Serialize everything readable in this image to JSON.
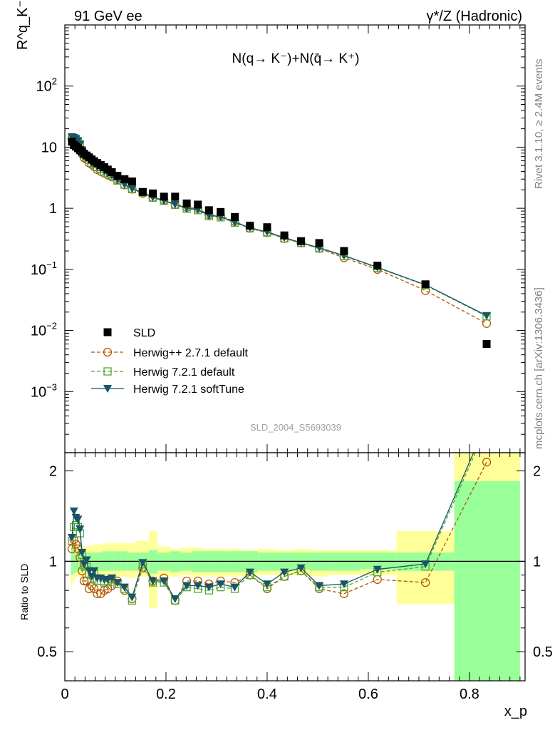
{
  "header": {
    "left": "91 GeV ee",
    "right": "γ*/Z (Hadronic)"
  },
  "side_text": {
    "rivet": "Rivet 3.1.10, ≥ 2.4M events",
    "mcplots": "mcplots.cern.ch [arXiv:1306.3436]"
  },
  "watermark": "SLD_2004_S5693039",
  "chart_data": [
    {
      "type": "scatter",
      "panel": "main",
      "title": "N(q→ K⁻)+N(q̄→ K⁺)",
      "ylabel": "R^q_K⁻",
      "xlabel": "x_p",
      "xlim": [
        0,
        0.91
      ],
      "ylim": [
        0.0001,
        1000
      ],
      "yscale": "log",
      "yticks": [
        {
          "value": 0.001,
          "base": "10",
          "exp": "−3"
        },
        {
          "value": 0.01,
          "base": "10",
          "exp": "−2"
        },
        {
          "value": 0.1,
          "base": "10",
          "exp": "−1"
        },
        {
          "value": 1,
          "label": "1"
        },
        {
          "value": 10,
          "label": "10"
        },
        {
          "value": 100,
          "base": "10",
          "exp": "2"
        }
      ],
      "legend_position": "lower-left",
      "x": [
        0.014,
        0.018,
        0.022,
        0.026,
        0.03,
        0.034,
        0.038,
        0.043,
        0.048,
        0.053,
        0.058,
        0.064,
        0.071,
        0.078,
        0.085,
        0.093,
        0.104,
        0.118,
        0.133,
        0.154,
        0.174,
        0.196,
        0.218,
        0.241,
        0.263,
        0.285,
        0.308,
        0.336,
        0.366,
        0.4,
        0.434,
        0.467,
        0.503,
        0.552,
        0.618,
        0.713,
        0.834
      ],
      "series": [
        {
          "name": "SLD",
          "style": "data",
          "color": "#000000",
          "values": [
            12.3,
            10.8,
            10.2,
            9.6,
            8.9,
            8.4,
            7.8,
            7.3,
            6.8,
            6.3,
            5.9,
            5.5,
            5.1,
            4.7,
            4.3,
            3.9,
            3.4,
            3.0,
            2.75,
            1.85,
            1.75,
            1.55,
            1.55,
            1.2,
            1.15,
            0.93,
            0.87,
            0.72,
            0.52,
            0.49,
            0.36,
            0.29,
            0.27,
            0.2,
            0.115,
            0.057,
            0.006
          ]
        },
        {
          "name": "Herwig++ 2.7.1 default",
          "style": "circle-dashed",
          "color": "#b35900",
          "values": [
            13.5,
            12.8,
            11.6,
            10.6,
            9.2,
            7.8,
            6.7,
            6.3,
            5.5,
            5.2,
            4.8,
            4.3,
            4.0,
            3.75,
            3.5,
            3.25,
            2.93,
            2.41,
            2.06,
            1.76,
            1.5,
            1.36,
            1.15,
            1.03,
            0.99,
            0.78,
            0.75,
            0.61,
            0.47,
            0.4,
            0.32,
            0.27,
            0.22,
            0.155,
            0.1,
            0.045,
            0.013
          ]
        },
        {
          "name": "Herwig 7.2.1 default",
          "style": "square-dashed",
          "color": "#4ea832",
          "values": [
            14.5,
            14.0,
            13.5,
            12.5,
            11.0,
            8.8,
            7.6,
            7.0,
            6.2,
            5.5,
            5.4,
            4.7,
            4.4,
            4.0,
            3.7,
            3.4,
            2.84,
            2.43,
            2.05,
            1.81,
            1.49,
            1.32,
            1.14,
            0.98,
            0.93,
            0.74,
            0.71,
            0.58,
            0.47,
            0.4,
            0.32,
            0.27,
            0.22,
            0.165,
            0.106,
            0.055,
            0.017
          ]
        },
        {
          "name": "Herwig 7.2.1 softTune",
          "style": "triangle-solid",
          "color": "#1a5468",
          "values": [
            14.8,
            14.3,
            13.8,
            12.7,
            11.2,
            9.0,
            7.7,
            7.1,
            6.3,
            5.6,
            5.5,
            4.8,
            4.5,
            4.1,
            3.75,
            3.45,
            2.9,
            2.46,
            2.08,
            1.83,
            1.51,
            1.34,
            1.16,
            1.0,
            0.95,
            0.76,
            0.73,
            0.59,
            0.48,
            0.41,
            0.33,
            0.275,
            0.225,
            0.168,
            0.108,
            0.056,
            0.0175
          ]
        }
      ]
    },
    {
      "type": "line",
      "panel": "ratio",
      "ylabel": "Ratio to SLD",
      "xlabel": "x_p",
      "xlim": [
        0,
        0.91
      ],
      "ylim": [
        0.4,
        2.3
      ],
      "yscale": "log",
      "yticks": [
        0.5,
        1,
        2
      ],
      "xticks": [
        0,
        0.2,
        0.4,
        0.6,
        0.8
      ],
      "x": [
        0.014,
        0.018,
        0.022,
        0.026,
        0.03,
        0.034,
        0.038,
        0.043,
        0.048,
        0.053,
        0.058,
        0.064,
        0.071,
        0.078,
        0.085,
        0.093,
        0.104,
        0.118,
        0.133,
        0.154,
        0.174,
        0.196,
        0.218,
        0.241,
        0.263,
        0.285,
        0.308,
        0.336,
        0.366,
        0.4,
        0.434,
        0.467,
        0.503,
        0.552,
        0.618,
        0.713,
        0.834
      ],
      "bands": {
        "edges": [
          0.012,
          0.016,
          0.02,
          0.024,
          0.028,
          0.032,
          0.036,
          0.04,
          0.045,
          0.05,
          0.055,
          0.06,
          0.067,
          0.074,
          0.081,
          0.088,
          0.097,
          0.111,
          0.125,
          0.141,
          0.166,
          0.183,
          0.208,
          0.229,
          0.252,
          0.274,
          0.296,
          0.32,
          0.351,
          0.382,
          0.417,
          0.451,
          0.484,
          0.521,
          0.584,
          0.656,
          0.77,
          0.9
        ],
        "stat_lo": [
          0.9,
          0.91,
          0.92,
          0.92,
          0.93,
          0.93,
          0.93,
          0.93,
          0.93,
          0.93,
          0.93,
          0.93,
          0.93,
          0.93,
          0.93,
          0.93,
          0.93,
          0.93,
          0.93,
          0.93,
          0.91,
          0.93,
          0.92,
          0.93,
          0.92,
          0.92,
          0.92,
          0.92,
          0.92,
          0.93,
          0.93,
          0.94,
          0.93,
          0.93,
          0.94,
          0.93,
          0.4
        ],
        "stat_hi": [
          1.1,
          1.09,
          1.08,
          1.08,
          1.07,
          1.07,
          1.07,
          1.07,
          1.07,
          1.07,
          1.07,
          1.07,
          1.07,
          1.08,
          1.08,
          1.08,
          1.08,
          1.08,
          1.07,
          1.07,
          1.09,
          1.07,
          1.08,
          1.07,
          1.08,
          1.08,
          1.08,
          1.08,
          1.08,
          1.07,
          1.07,
          1.07,
          1.07,
          1.07,
          1.07,
          1.07,
          1.85
        ],
        "sys_lo": [
          0.83,
          0.86,
          0.88,
          0.89,
          0.89,
          0.89,
          0.89,
          0.89,
          0.9,
          0.9,
          0.9,
          0.9,
          0.89,
          0.89,
          0.89,
          0.89,
          0.89,
          0.89,
          0.88,
          0.89,
          0.7,
          0.89,
          0.89,
          0.9,
          0.89,
          0.89,
          0.89,
          0.89,
          0.89,
          0.9,
          0.9,
          0.9,
          0.89,
          0.9,
          0.9,
          0.72,
          0.4
        ],
        "sys_hi": [
          1.14,
          1.13,
          1.12,
          1.12,
          1.12,
          1.12,
          1.12,
          1.12,
          1.13,
          1.13,
          1.13,
          1.14,
          1.14,
          1.14,
          1.15,
          1.15,
          1.15,
          1.15,
          1.15,
          1.17,
          1.26,
          1.12,
          1.1,
          1.11,
          1.11,
          1.1,
          1.1,
          1.1,
          1.09,
          1.1,
          1.09,
          1.1,
          1.09,
          1.09,
          1.09,
          1.26,
          2.3
        ]
      },
      "series": [
        {
          "name": "Herwig++ 2.7.1 default",
          "style": "circle-dashed",
          "color": "#b35900",
          "values": [
            1.1,
            1.18,
            1.14,
            1.1,
            1.03,
            0.93,
            0.86,
            0.86,
            0.81,
            0.83,
            0.81,
            0.78,
            0.78,
            0.8,
            0.81,
            0.83,
            0.86,
            0.8,
            0.75,
            0.95,
            0.86,
            0.88,
            0.74,
            0.86,
            0.86,
            0.84,
            0.86,
            0.85,
            0.9,
            0.81,
            0.89,
            0.93,
            0.81,
            0.78,
            0.87,
            0.85,
            2.14
          ]
        },
        {
          "name": "Herwig 7.2.1 default",
          "style": "square-dashed",
          "color": "#4ea832",
          "values": [
            1.17,
            1.3,
            1.32,
            1.3,
            1.24,
            1.05,
            0.97,
            0.96,
            0.91,
            0.87,
            0.91,
            0.86,
            0.86,
            0.85,
            0.86,
            0.87,
            0.84,
            0.81,
            0.74,
            0.98,
            0.85,
            0.85,
            0.74,
            0.82,
            0.81,
            0.8,
            0.82,
            0.81,
            0.9,
            0.82,
            0.89,
            0.93,
            0.82,
            0.82,
            0.92,
            0.96,
            2.8
          ]
        },
        {
          "name": "Herwig 7.2.1 softTune",
          "style": "triangle-solid",
          "color": "#1a5468",
          "values": [
            1.2,
            1.47,
            1.4,
            1.38,
            1.28,
            1.07,
            0.98,
            1.01,
            0.93,
            0.89,
            0.93,
            0.88,
            0.88,
            0.87,
            0.87,
            0.88,
            0.85,
            0.82,
            0.76,
            0.99,
            0.86,
            0.86,
            0.75,
            0.83,
            0.83,
            0.82,
            0.84,
            0.82,
            0.92,
            0.84,
            0.92,
            0.95,
            0.83,
            0.84,
            0.94,
            0.98,
            2.9
          ]
        }
      ]
    }
  ]
}
